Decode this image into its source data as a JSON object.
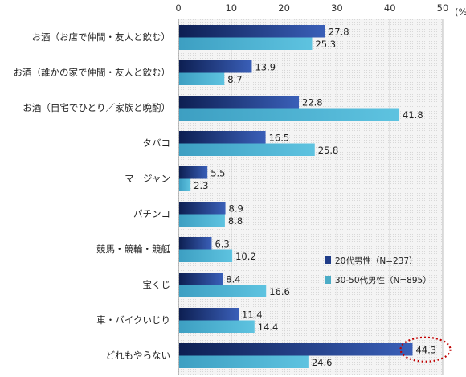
{
  "chart_data": {
    "type": "bar",
    "orientation": "horizontal",
    "unit": "(%",
    "xlim": [
      0,
      50
    ],
    "xticks": [
      0,
      10,
      20,
      30,
      40,
      50
    ],
    "categories": [
      "お酒（お店で仲間・友人と飲む）",
      "お酒（誰かの家で仲間・友人と飲む）",
      "お酒（自宅でひとり／家族と晩酌）",
      "タバコ",
      "マージャン",
      "パチンコ",
      "競馬・競輪・競艇",
      "宝くじ",
      "車・バイクいじり",
      "どれもやらない"
    ],
    "series": [
      {
        "name": "20代男性（N=237）",
        "values": [
          27.8,
          13.9,
          22.8,
          16.5,
          5.5,
          8.9,
          6.3,
          8.4,
          11.4,
          44.3
        ]
      },
      {
        "name": "30-50代男性（N=895）",
        "values": [
          25.3,
          8.7,
          41.8,
          25.8,
          2.3,
          8.8,
          10.2,
          16.6,
          14.4,
          24.6
        ]
      }
    ],
    "legend_position": "right-bottom",
    "grid": true,
    "highlight": {
      "category_index": 9,
      "series_index": 0,
      "style": "red dotted ellipse"
    },
    "colors": {
      "series1": "#1f3c88",
      "series2": "#4bacc6",
      "highlight": "#c00000",
      "plot_bg": "#ececec"
    }
  }
}
